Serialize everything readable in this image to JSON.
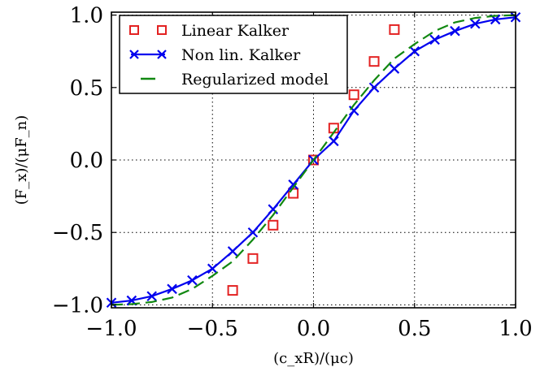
{
  "chart_data": {
    "type": "line",
    "xlabel": "(c_xR)/(μc)",
    "ylabel": "(F_x)/(μF_n)",
    "xlim": [
      -1.0,
      1.0
    ],
    "ylim": [
      -1.02,
      1.02
    ],
    "x_ticks": [
      -1.0,
      -0.5,
      0.0,
      0.5,
      1.0
    ],
    "y_ticks": [
      -1.0,
      -0.5,
      0.0,
      0.5,
      1.0
    ],
    "x_tick_labels": [
      "−1.0",
      "−0.5",
      "0.0",
      "0.5",
      "1.0"
    ],
    "y_tick_labels": [
      "−1.0",
      "−0.5",
      "0.0",
      "0.5",
      "1.0"
    ],
    "grid": true,
    "legend_position": "top-left",
    "series": [
      {
        "name": "Linear Kalker",
        "style": "markers",
        "marker": "square",
        "color": "#e32222",
        "x": [
          -0.4,
          -0.3,
          -0.2,
          -0.1,
          0.0,
          0.1,
          0.2,
          0.3,
          0.4
        ],
        "y": [
          -0.9,
          -0.68,
          -0.45,
          -0.23,
          0.0,
          0.22,
          0.45,
          0.68,
          0.9
        ]
      },
      {
        "name": "Non lin. Kalker",
        "style": "line+markers",
        "marker": "x",
        "color": "#0000ee",
        "x": [
          -1.0,
          -0.9,
          -0.8,
          -0.7,
          -0.6,
          -0.5,
          -0.4,
          -0.3,
          -0.2,
          -0.1,
          0.0,
          0.1,
          0.2,
          0.3,
          0.4,
          0.5,
          0.6,
          0.7,
          0.8,
          0.9,
          1.0
        ],
        "y": [
          -0.985,
          -0.97,
          -0.94,
          -0.89,
          -0.83,
          -0.75,
          -0.63,
          -0.5,
          -0.34,
          -0.17,
          0.0,
          0.13,
          0.34,
          0.5,
          0.63,
          0.75,
          0.83,
          0.89,
          0.94,
          0.97,
          0.985
        ]
      },
      {
        "name": "Regularized model",
        "style": "dashed-line",
        "color": "#118811",
        "x": [
          -1.0,
          -0.9,
          -0.8,
          -0.7,
          -0.6,
          -0.5,
          -0.4,
          -0.3,
          -0.2,
          -0.1,
          0.0,
          0.1,
          0.2,
          0.3,
          0.4,
          0.5,
          0.6,
          0.7,
          0.8,
          0.9,
          1.0
        ],
        "y": [
          -1.0,
          -0.995,
          -0.98,
          -0.95,
          -0.89,
          -0.8,
          -0.7,
          -0.55,
          -0.38,
          -0.19,
          0.0,
          0.19,
          0.38,
          0.55,
          0.7,
          0.8,
          0.89,
          0.95,
          0.98,
          0.995,
          1.0
        ]
      }
    ]
  }
}
